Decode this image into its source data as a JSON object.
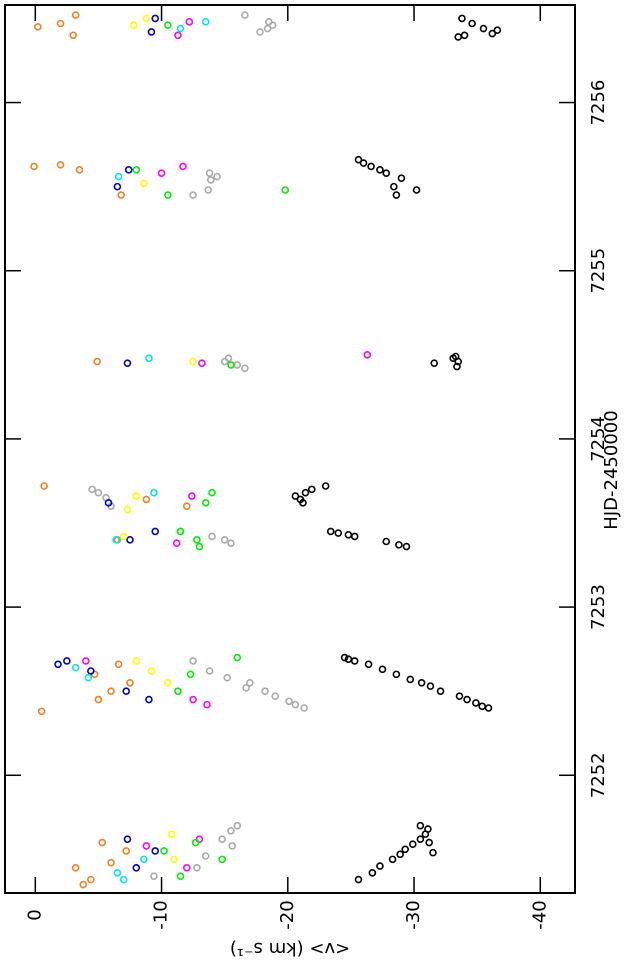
{
  "chart_data": {
    "type": "scatter",
    "marker": "open-circle",
    "orientation": "rotated",
    "xlabel": "HJD-2450000",
    "ylabel": "<v> (km s⁻¹)",
    "xlim": [
      7251.3,
      7256.58
    ],
    "xticks": [
      7252,
      7253,
      7254,
      7255,
      7256
    ],
    "ylim": [
      -42.75,
      2.4
    ],
    "yticks": [
      0,
      -10,
      -20,
      -30,
      -40
    ],
    "series": [
      {
        "color": "#000000",
        "x": [
          7251.38,
          7251.42,
          7251.46,
          7251.5,
          7251.53,
          7251.56,
          7251.59,
          7251.62,
          7251.65,
          7251.68,
          7251.7,
          7251.6,
          7251.54,
          7252.7,
          7252.69,
          7252.68,
          7252.66,
          7252.63,
          7252.6,
          7252.57,
          7252.55,
          7252.53,
          7252.5,
          7252.47,
          7252.45,
          7252.43,
          7252.41,
          7252.4,
          7253.72,
          7253.7,
          7253.68,
          7253.66,
          7253.64,
          7253.62,
          7253.45,
          7253.44,
          7253.43,
          7253.42,
          7253.39,
          7253.37,
          7253.36,
          7254.49,
          7254.48,
          7254.46,
          7254.45,
          7254.43,
          7255.66,
          7255.64,
          7255.62,
          7255.6,
          7255.58,
          7255.55,
          7255.5,
          7255.48,
          7255.45,
          7256.5,
          7256.47,
          7256.44,
          7256.43,
          7256.41,
          7256.4,
          7256.39
        ],
        "values": [
          -25.6,
          -26.7,
          -27.3,
          -28.3,
          -28.9,
          -29.3,
          -29.9,
          -30.5,
          -30.9,
          -31.1,
          -30.5,
          -31.2,
          -31.5,
          -24.5,
          -24.8,
          -25.3,
          -26.4,
          -27.5,
          -28.6,
          -29.7,
          -30.6,
          -31.3,
          -32.1,
          -33.6,
          -34.2,
          -34.9,
          -35.4,
          -35.9,
          -23.0,
          -21.9,
          -21.4,
          -20.6,
          -21.0,
          -21.2,
          -23.4,
          -24.0,
          -24.8,
          -25.3,
          -27.8,
          -28.8,
          -29.4,
          -33.3,
          -33.1,
          -33.5,
          -31.6,
          -33.4,
          -25.6,
          -26.0,
          -26.6,
          -27.3,
          -27.8,
          -29.0,
          -28.4,
          -30.2,
          -28.6,
          -33.8,
          -34.6,
          -35.5,
          -36.6,
          -36.2,
          -34.0,
          -33.5
        ]
      },
      {
        "color": "#aaaaaa",
        "x": [
          7251.7,
          7251.67,
          7251.62,
          7251.58,
          7251.52,
          7251.45,
          7251.4,
          7252.68,
          7252.62,
          7252.58,
          7252.55,
          7252.52,
          7252.5,
          7252.47,
          7252.44,
          7252.42,
          7252.4,
          7253.7,
          7253.68,
          7253.65,
          7253.6,
          7253.4,
          7253.38,
          7253.42,
          7253.45,
          7254.46,
          7254.44,
          7254.42,
          7254.48,
          7255.58,
          7255.56,
          7255.54,
          7255.48,
          7255.45,
          7256.52,
          7256.48,
          7256.44,
          7256.46,
          7256.42
        ],
        "values": [
          -16.0,
          -15.5,
          -14.8,
          -15.6,
          -13.5,
          -12.8,
          -9.4,
          -12.5,
          -13.8,
          -15.2,
          -17.0,
          -16.7,
          -18.2,
          -19.0,
          -20.1,
          -20.6,
          -21.3,
          -4.5,
          -5.0,
          -5.6,
          -6.0,
          -15.0,
          -15.5,
          -14.0,
          -11.5,
          -15.0,
          -16.0,
          -16.6,
          -15.3,
          -13.8,
          -14.4,
          -13.9,
          -13.7,
          -12.5,
          -16.6,
          -18.5,
          -18.4,
          -18.8,
          -17.8
        ]
      },
      {
        "color": "#f08020",
        "x": [
          7251.38,
          7251.35,
          7251.45,
          7251.48,
          7251.55,
          7251.6,
          7252.38,
          7252.45,
          7252.5,
          7252.55,
          7252.6,
          7252.66,
          7253.72,
          7253.6,
          7253.64,
          7253.4,
          7254.46,
          7255.62,
          7255.63,
          7255.6,
          7255.45,
          7256.52,
          7256.45,
          7256.47,
          7256.4
        ],
        "values": [
          -4.4,
          -3.8,
          -3.2,
          -6.0,
          -7.2,
          -5.3,
          -0.5,
          -5.0,
          -6.0,
          -7.5,
          -4.7,
          -6.6,
          -0.7,
          -12.0,
          -8.8,
          -6.5,
          -4.9,
          0.1,
          -2.0,
          -3.5,
          -6.8,
          -3.2,
          -0.2,
          -2.0,
          -3.0
        ]
      },
      {
        "color": "#0000cc",
        "x": [
          7251.45,
          7251.55,
          7251.62,
          7252.66,
          7252.68,
          7252.62,
          7252.5,
          7252.45,
          7253.62,
          7253.4,
          7253.45,
          7254.45,
          7255.6,
          7255.5,
          7256.5,
          7256.42
        ],
        "values": [
          -8.0,
          -9.5,
          -7.3,
          -1.8,
          -2.5,
          -4.4,
          -7.2,
          -9.0,
          -5.8,
          -7.5,
          -9.5,
          -7.3,
          -7.4,
          -6.5,
          -9.5,
          -9.2
        ]
      },
      {
        "color": "#00e5ee",
        "x": [
          7251.38,
          7251.42,
          7251.5,
          7252.64,
          7252.58,
          7253.4,
          7253.68,
          7254.48,
          7255.56,
          7256.44,
          7256.48
        ],
        "values": [
          -7.0,
          -6.5,
          -8.6,
          -3.2,
          -4.2,
          -6.4,
          -9.4,
          -9.0,
          -6.6,
          -11.5,
          -13.5
        ]
      },
      {
        "color": "#ff00ff",
        "x": [
          7251.58,
          7251.62,
          7251.45,
          7252.68,
          7252.45,
          7252.42,
          7253.66,
          7253.38,
          7254.45,
          7254.5,
          7255.58,
          7255.62,
          7256.48,
          7256.4
        ],
        "values": [
          -8.8,
          -13.0,
          -12.0,
          -4.0,
          -12.5,
          -13.6,
          -12.4,
          -11.2,
          -13.2,
          -26.3,
          -10.0,
          -11.7,
          -12.2,
          -11.3
        ]
      },
      {
        "color": "#00ee00",
        "x": [
          7251.6,
          7251.5,
          7251.4,
          7251.55,
          7252.7,
          7252.6,
          7252.5,
          7253.62,
          7253.68,
          7253.45,
          7253.4,
          7253.36,
          7254.44,
          7255.48,
          7255.6,
          7255.45,
          7256.46
        ],
        "values": [
          -12.7,
          -14.8,
          -11.5,
          -10.2,
          -16.0,
          -12.3,
          -11.3,
          -13.5,
          -14.0,
          -11.5,
          -12.8,
          -13.0,
          -15.5,
          -19.8,
          -8.0,
          -10.5,
          -10.5
        ]
      },
      {
        "color": "#ffff00",
        "x": [
          7251.5,
          7251.65,
          7252.68,
          7252.55,
          7252.62,
          7253.66,
          7253.58,
          7253.42,
          7254.46,
          7255.52,
          7256.46,
          7256.5
        ],
        "values": [
          -11.0,
          -10.8,
          -8.0,
          -10.5,
          -9.2,
          -8.0,
          -7.3,
          -7.0,
          -12.5,
          -8.6,
          -7.8,
          -8.8
        ]
      }
    ]
  }
}
